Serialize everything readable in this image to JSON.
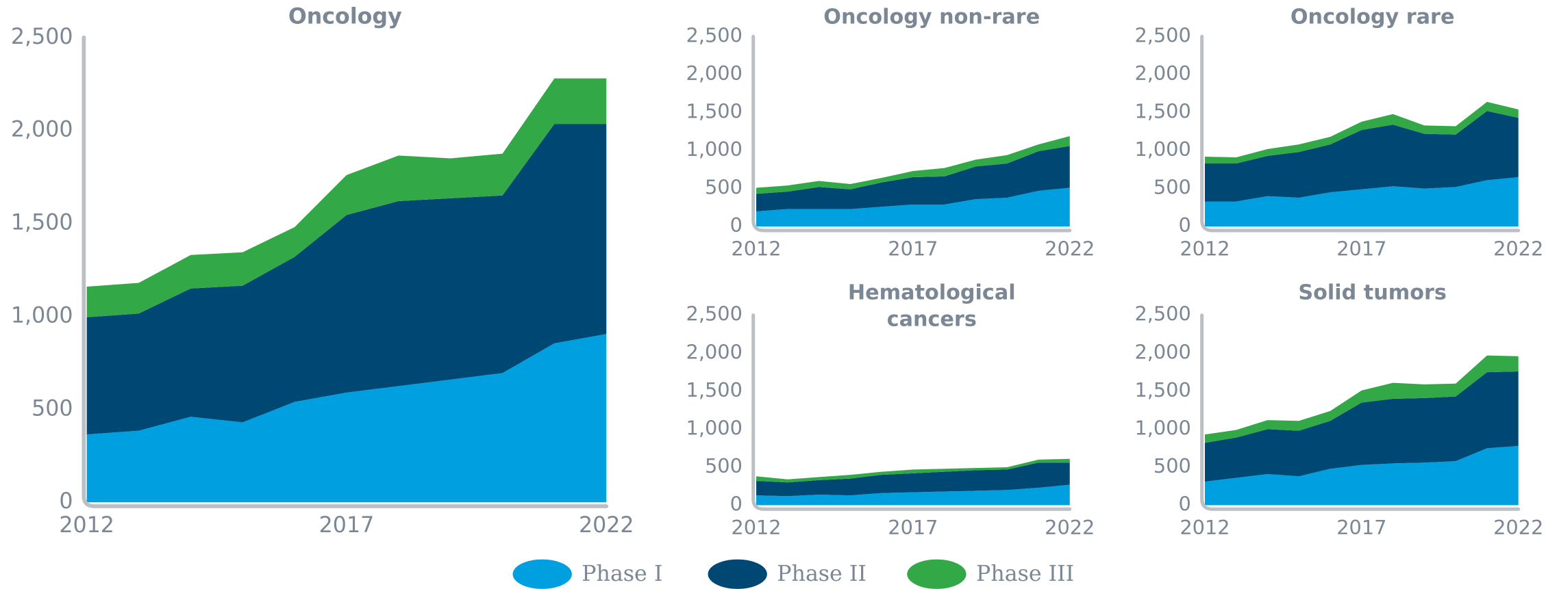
{
  "chart_data": [
    {
      "type": "stacked_area",
      "title": "Oncology",
      "x": [
        2012,
        2013,
        2014,
        2015,
        2016,
        2017,
        2018,
        2019,
        2020,
        2021,
        2022
      ],
      "xlim": [
        2012,
        2022
      ],
      "xticks": [
        2012,
        2017,
        2022
      ],
      "ylim": [
        0,
        2500
      ],
      "yticks": [
        0,
        500,
        {
          "value": 1000,
          "label": "1,000"
        },
        {
          "value": 1500,
          "label": "1,500"
        },
        {
          "value": 2000,
          "label": "2,000"
        },
        {
          "value": 2500,
          "label": "2,500"
        }
      ],
      "series": [
        {
          "name": "Phase I",
          "color": "#00a0e0",
          "values": [
            365,
            385,
            460,
            430,
            540,
            590,
            625,
            660,
            695,
            855,
            905
          ]
        },
        {
          "name": "Phase II",
          "color": "#004874",
          "values": [
            630,
            630,
            690,
            735,
            780,
            955,
            995,
            975,
            955,
            1180,
            1130
          ]
        },
        {
          "name": "Phase III",
          "color": "#33a846",
          "values": [
            165,
            165,
            180,
            180,
            160,
            215,
            245,
            215,
            225,
            245,
            245
          ]
        }
      ]
    },
    {
      "type": "stacked_area",
      "title": "Oncology non-rare",
      "x": [
        2012,
        2013,
        2014,
        2015,
        2016,
        2017,
        2018,
        2019,
        2020,
        2021,
        2022
      ],
      "xlim": [
        2012,
        2022
      ],
      "xticks": [
        2012,
        2017,
        2022
      ],
      "ylim": [
        0,
        2500
      ],
      "yticks": [
        0,
        500,
        {
          "value": 1000,
          "label": "1,000"
        },
        {
          "value": 1500,
          "label": "1,500"
        },
        {
          "value": 2000,
          "label": "2,000"
        },
        {
          "value": 2500,
          "label": "2,500"
        }
      ],
      "series": [
        {
          "name": "Phase I",
          "color": "#00a0e0",
          "values": [
            200,
            230,
            230,
            230,
            260,
            290,
            290,
            360,
            380,
            470,
            510
          ]
        },
        {
          "name": "Phase II",
          "color": "#004874",
          "values": [
            230,
            230,
            290,
            260,
            320,
            360,
            370,
            430,
            450,
            520,
            550
          ]
        },
        {
          "name": "Phase III",
          "color": "#33a846",
          "values": [
            80,
            80,
            80,
            70,
            60,
            80,
            110,
            90,
            110,
            90,
            130
          ]
        }
      ]
    },
    {
      "type": "stacked_area",
      "title": "Oncology rare",
      "x": [
        2012,
        2013,
        2014,
        2015,
        2016,
        2017,
        2018,
        2019,
        2020,
        2021,
        2022
      ],
      "xlim": [
        2012,
        2022
      ],
      "xticks": [
        2012,
        2017,
        2022
      ],
      "ylim": [
        0,
        2500
      ],
      "yticks": [
        0,
        500,
        {
          "value": 1000,
          "label": "1,000"
        },
        {
          "value": 1500,
          "label": "1,500"
        },
        {
          "value": 2000,
          "label": "2,000"
        },
        {
          "value": 2500,
          "label": "2,500"
        }
      ],
      "series": [
        {
          "name": "Phase I",
          "color": "#00a0e0",
          "values": [
            330,
            330,
            400,
            380,
            450,
            490,
            530,
            500,
            520,
            610,
            650
          ]
        },
        {
          "name": "Phase II",
          "color": "#004874",
          "values": [
            500,
            500,
            530,
            600,
            630,
            780,
            810,
            720,
            690,
            910,
            780
          ]
        },
        {
          "name": "Phase III",
          "color": "#33a846",
          "values": [
            90,
            80,
            90,
            100,
            100,
            110,
            140,
            110,
            110,
            120,
            110
          ]
        }
      ]
    },
    {
      "type": "stacked_area",
      "title": "Hematological cancers",
      "x": [
        2012,
        2013,
        2014,
        2015,
        2016,
        2017,
        2018,
        2019,
        2020,
        2021,
        2022
      ],
      "xlim": [
        2012,
        2022
      ],
      "xticks": [
        2012,
        2017,
        2022
      ],
      "ylim": [
        0,
        2500
      ],
      "yticks": [
        0,
        500,
        {
          "value": 1000,
          "label": "1,000"
        },
        {
          "value": 1500,
          "label": "1,500"
        },
        {
          "value": 2000,
          "label": "2,000"
        },
        {
          "value": 2500,
          "label": "2,500"
        }
      ],
      "series": [
        {
          "name": "Phase I",
          "color": "#00a0e0",
          "values": [
            130,
            120,
            140,
            130,
            160,
            170,
            180,
            190,
            200,
            230,
            270
          ]
        },
        {
          "name": "Phase II",
          "color": "#004874",
          "values": [
            190,
            180,
            190,
            220,
            240,
            250,
            260,
            270,
            270,
            330,
            290
          ]
        },
        {
          "name": "Phase III",
          "color": "#33a846",
          "values": [
            60,
            40,
            40,
            50,
            40,
            50,
            40,
            30,
            30,
            40,
            50
          ]
        }
      ]
    },
    {
      "type": "stacked_area",
      "title": "Solid tumors",
      "x": [
        2012,
        2013,
        2014,
        2015,
        2016,
        2017,
        2018,
        2019,
        2020,
        2021,
        2022
      ],
      "xlim": [
        2012,
        2022
      ],
      "xticks": [
        2012,
        2017,
        2022
      ],
      "ylim": [
        0,
        2500
      ],
      "yticks": [
        0,
        500,
        {
          "value": 1000,
          "label": "1,000"
        },
        {
          "value": 1500,
          "label": "1,500"
        },
        {
          "value": 2000,
          "label": "2,000"
        },
        {
          "value": 2500,
          "label": "2,500"
        }
      ],
      "series": [
        {
          "name": "Phase I",
          "color": "#00a0e0",
          "values": [
            310,
            360,
            410,
            380,
            480,
            530,
            550,
            560,
            580,
            750,
            780
          ]
        },
        {
          "name": "Phase II",
          "color": "#004874",
          "values": [
            510,
            530,
            590,
            600,
            630,
            820,
            850,
            850,
            850,
            1000,
            980
          ]
        },
        {
          "name": "Phase III",
          "color": "#33a846",
          "values": [
            110,
            100,
            120,
            130,
            130,
            160,
            210,
            180,
            170,
            220,
            200
          ]
        }
      ]
    }
  ]
}
